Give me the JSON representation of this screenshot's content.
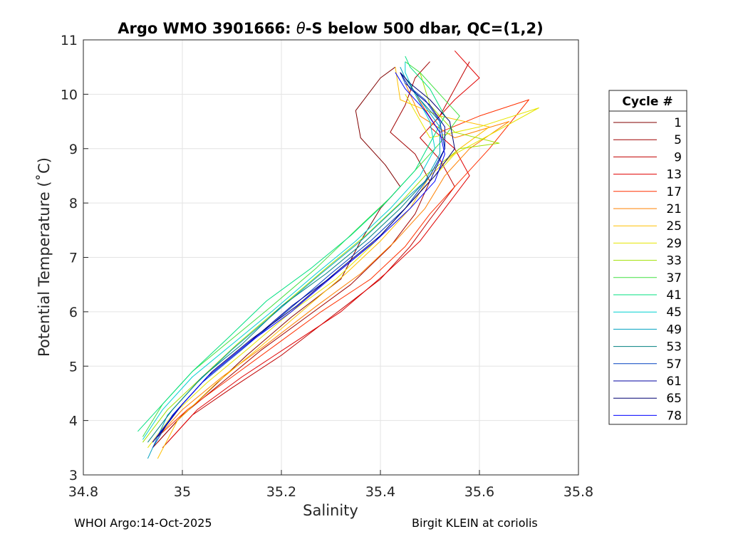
{
  "chart_data": {
    "type": "line",
    "title": "Argo WMO 3901666: θ-S below 500 dbar,  QC=(1,2)",
    "title_parts": {
      "prefix": "Argo WMO 3901666: ",
      "theta": "θ",
      "suffix": "-S below 500 dbar,  QC=(1,2)"
    },
    "xlabel": "Salinity",
    "ylabel": "Potential Temperature (˚C)",
    "xlim": [
      34.8,
      35.8
    ],
    "ylim": [
      3,
      11
    ],
    "xticks": [
      34.8,
      35,
      35.2,
      35.4,
      35.6,
      35.8
    ],
    "xtick_labels": [
      "34.8",
      "35",
      "35.2",
      "35.4",
      "35.6",
      "35.8"
    ],
    "yticks": [
      3,
      4,
      5,
      6,
      7,
      8,
      9,
      10,
      11
    ],
    "ytick_labels": [
      "3",
      "4",
      "5",
      "6",
      "7",
      "8",
      "9",
      "10",
      "11"
    ],
    "grid": true,
    "legend_title": "Cycle #",
    "legend_position": "outside-right",
    "series": [
      {
        "name": "1",
        "color": "#800000",
        "points": [
          [
            34.94,
            3.5
          ],
          [
            34.99,
            4.0
          ],
          [
            35.06,
            4.6
          ],
          [
            35.13,
            5.2
          ],
          [
            35.22,
            5.9
          ],
          [
            35.32,
            6.6
          ],
          [
            35.36,
            7.3
          ],
          [
            35.4,
            7.9
          ],
          [
            35.44,
            8.3
          ],
          [
            35.41,
            8.7
          ],
          [
            35.36,
            9.2
          ],
          [
            35.35,
            9.7
          ],
          [
            35.4,
            10.3
          ],
          [
            35.43,
            10.5
          ]
        ]
      },
      {
        "name": "5",
        "color": "#a00000",
        "points": [
          [
            34.95,
            3.6
          ],
          [
            35.0,
            4.1
          ],
          [
            35.08,
            4.7
          ],
          [
            35.16,
            5.3
          ],
          [
            35.25,
            5.9
          ],
          [
            35.34,
            6.5
          ],
          [
            35.42,
            7.2
          ],
          [
            35.47,
            7.8
          ],
          [
            35.5,
            8.4
          ],
          [
            35.47,
            8.9
          ],
          [
            35.42,
            9.3
          ],
          [
            35.45,
            9.8
          ],
          [
            35.47,
            10.3
          ],
          [
            35.5,
            10.6
          ]
        ]
      },
      {
        "name": "9",
        "color": "#c00000",
        "points": [
          [
            34.96,
            3.5
          ],
          [
            35.02,
            4.1
          ],
          [
            35.1,
            4.6
          ],
          [
            35.2,
            5.2
          ],
          [
            35.3,
            5.9
          ],
          [
            35.4,
            6.6
          ],
          [
            35.46,
            7.2
          ],
          [
            35.5,
            7.7
          ],
          [
            35.55,
            8.3
          ],
          [
            35.52,
            8.8
          ],
          [
            35.48,
            9.2
          ],
          [
            35.52,
            9.6
          ],
          [
            35.55,
            10.1
          ],
          [
            35.58,
            10.6
          ]
        ]
      },
      {
        "name": "13",
        "color": "#e00000",
        "points": [
          [
            34.97,
            3.6
          ],
          [
            35.03,
            4.2
          ],
          [
            35.12,
            4.8
          ],
          [
            35.22,
            5.4
          ],
          [
            35.32,
            6.0
          ],
          [
            35.41,
            6.7
          ],
          [
            35.48,
            7.3
          ],
          [
            35.53,
            7.9
          ],
          [
            35.58,
            8.5
          ],
          [
            35.55,
            9.0
          ],
          [
            35.5,
            9.4
          ],
          [
            35.55,
            9.9
          ],
          [
            35.6,
            10.3
          ],
          [
            35.55,
            10.8
          ]
        ]
      },
      {
        "name": "17",
        "color": "#ff3000",
        "points": [
          [
            34.95,
            3.7
          ],
          [
            35.01,
            4.2
          ],
          [
            35.1,
            4.8
          ],
          [
            35.19,
            5.4
          ],
          [
            35.28,
            6.0
          ],
          [
            35.38,
            6.6
          ],
          [
            35.45,
            7.2
          ],
          [
            35.5,
            7.8
          ],
          [
            35.56,
            8.4
          ],
          [
            35.62,
            9.0
          ],
          [
            35.7,
            9.9
          ],
          [
            35.6,
            9.6
          ],
          [
            35.52,
            9.3
          ],
          [
            35.47,
            10.0
          ]
        ]
      },
      {
        "name": "21",
        "color": "#ff8000",
        "points": [
          [
            34.94,
            3.6
          ],
          [
            35.0,
            4.2
          ],
          [
            35.08,
            4.8
          ],
          [
            35.17,
            5.4
          ],
          [
            35.27,
            6.1
          ],
          [
            35.36,
            6.7
          ],
          [
            35.43,
            7.3
          ],
          [
            35.49,
            7.9
          ],
          [
            35.53,
            8.5
          ],
          [
            35.58,
            9.0
          ],
          [
            35.66,
            9.5
          ],
          [
            35.55,
            9.2
          ],
          [
            35.48,
            9.6
          ],
          [
            35.45,
            10.2
          ]
        ]
      },
      {
        "name": "25",
        "color": "#ffc000",
        "points": [
          [
            34.95,
            3.3
          ],
          [
            34.99,
            4.0
          ],
          [
            35.07,
            4.7
          ],
          [
            35.15,
            5.3
          ],
          [
            35.24,
            6.0
          ],
          [
            35.33,
            6.7
          ],
          [
            35.4,
            7.3
          ],
          [
            35.46,
            7.9
          ],
          [
            35.5,
            8.5
          ],
          [
            35.56,
            9.0
          ],
          [
            35.62,
            9.4
          ],
          [
            35.52,
            9.6
          ],
          [
            35.44,
            9.9
          ],
          [
            35.43,
            10.5
          ]
        ]
      },
      {
        "name": "29",
        "color": "#e6e600",
        "points": [
          [
            34.93,
            3.5
          ],
          [
            34.98,
            4.1
          ],
          [
            35.05,
            4.7
          ],
          [
            35.13,
            5.3
          ],
          [
            35.22,
            6.0
          ],
          [
            35.31,
            6.6
          ],
          [
            35.38,
            7.2
          ],
          [
            35.44,
            7.8
          ],
          [
            35.49,
            8.3
          ],
          [
            35.55,
            8.9
          ],
          [
            35.72,
            9.75
          ],
          [
            35.6,
            9.4
          ],
          [
            35.5,
            9.2
          ],
          [
            35.45,
            10.0
          ]
        ]
      },
      {
        "name": "33",
        "color": "#a0e000",
        "points": [
          [
            34.92,
            3.6
          ],
          [
            34.97,
            4.2
          ],
          [
            35.04,
            4.8
          ],
          [
            35.11,
            5.4
          ],
          [
            35.2,
            6.1
          ],
          [
            35.29,
            6.8
          ],
          [
            35.37,
            7.4
          ],
          [
            35.44,
            8.0
          ],
          [
            35.49,
            8.5
          ],
          [
            35.56,
            9.0
          ],
          [
            35.64,
            9.1
          ],
          [
            35.55,
            9.3
          ],
          [
            35.5,
            9.8
          ],
          [
            35.48,
            10.4
          ]
        ]
      },
      {
        "name": "37",
        "color": "#40e040",
        "points": [
          [
            34.92,
            3.7
          ],
          [
            34.96,
            4.3
          ],
          [
            35.02,
            4.9
          ],
          [
            35.1,
            5.5
          ],
          [
            35.18,
            6.1
          ],
          [
            35.27,
            6.8
          ],
          [
            35.35,
            7.5
          ],
          [
            35.42,
            8.1
          ],
          [
            35.47,
            8.6
          ],
          [
            35.52,
            9.1
          ],
          [
            35.56,
            9.6
          ],
          [
            35.52,
            10.0
          ],
          [
            35.48,
            10.4
          ],
          [
            35.45,
            10.6
          ]
        ]
      },
      {
        "name": "41",
        "color": "#00e080",
        "points": [
          [
            34.91,
            3.8
          ],
          [
            34.96,
            4.3
          ],
          [
            35.02,
            4.9
          ],
          [
            35.09,
            5.5
          ],
          [
            35.17,
            6.2
          ],
          [
            35.26,
            6.8
          ],
          [
            35.34,
            7.4
          ],
          [
            35.41,
            8.0
          ],
          [
            35.47,
            8.6
          ],
          [
            35.5,
            9.1
          ],
          [
            35.53,
            9.6
          ],
          [
            35.5,
            10.1
          ],
          [
            35.46,
            10.5
          ],
          [
            35.45,
            10.7
          ]
        ]
      },
      {
        "name": "45",
        "color": "#00d0d0",
        "points": [
          [
            34.92,
            3.65
          ],
          [
            34.96,
            4.2
          ],
          [
            35.02,
            4.8
          ],
          [
            35.1,
            5.4
          ],
          [
            35.18,
            6.0
          ],
          [
            35.27,
            6.7
          ],
          [
            35.35,
            7.3
          ],
          [
            35.42,
            7.9
          ],
          [
            35.48,
            8.5
          ],
          [
            35.51,
            9.0
          ],
          [
            35.5,
            9.5
          ],
          [
            35.47,
            10.0
          ],
          [
            35.45,
            10.4
          ],
          [
            35.45,
            10.6
          ]
        ]
      },
      {
        "name": "49",
        "color": "#00a0c0",
        "points": [
          [
            34.93,
            3.3
          ],
          [
            34.97,
            4.1
          ],
          [
            35.03,
            4.7
          ],
          [
            35.1,
            5.3
          ],
          [
            35.19,
            6.0
          ],
          [
            35.28,
            6.7
          ],
          [
            35.36,
            7.3
          ],
          [
            35.43,
            7.9
          ],
          [
            35.49,
            8.4
          ],
          [
            35.52,
            8.9
          ],
          [
            35.52,
            9.4
          ],
          [
            35.48,
            9.9
          ],
          [
            35.45,
            10.3
          ],
          [
            35.44,
            10.5
          ]
        ]
      },
      {
        "name": "53",
        "color": "#008080",
        "points": [
          [
            34.93,
            3.6
          ],
          [
            34.98,
            4.2
          ],
          [
            35.04,
            4.8
          ],
          [
            35.12,
            5.4
          ],
          [
            35.2,
            6.1
          ],
          [
            35.29,
            6.7
          ],
          [
            35.37,
            7.3
          ],
          [
            35.44,
            7.9
          ],
          [
            35.5,
            8.5
          ],
          [
            35.53,
            9.0
          ],
          [
            35.52,
            9.5
          ],
          [
            35.48,
            9.9
          ],
          [
            35.45,
            10.3
          ],
          [
            35.44,
            10.4
          ]
        ]
      },
      {
        "name": "57",
        "color": "#0040c0",
        "points": [
          [
            34.94,
            3.5
          ],
          [
            34.98,
            4.1
          ],
          [
            35.04,
            4.7
          ],
          [
            35.12,
            5.3
          ],
          [
            35.21,
            6.0
          ],
          [
            35.3,
            6.7
          ],
          [
            35.38,
            7.3
          ],
          [
            35.45,
            7.9
          ],
          [
            35.5,
            8.5
          ],
          [
            35.53,
            9.0
          ],
          [
            35.52,
            9.5
          ],
          [
            35.49,
            9.9
          ],
          [
            35.45,
            10.2
          ],
          [
            35.44,
            10.4
          ]
        ]
      },
      {
        "name": "61",
        "color": "#0000a0",
        "points": [
          [
            34.94,
            3.6
          ],
          [
            34.99,
            4.2
          ],
          [
            35.05,
            4.8
          ],
          [
            35.13,
            5.4
          ],
          [
            35.22,
            6.1
          ],
          [
            35.31,
            6.7
          ],
          [
            35.39,
            7.3
          ],
          [
            35.45,
            7.9
          ],
          [
            35.5,
            8.4
          ],
          [
            35.53,
            9.0
          ],
          [
            35.53,
            9.4
          ],
          [
            35.5,
            9.8
          ],
          [
            35.46,
            10.1
          ],
          [
            35.44,
            10.4
          ]
        ]
      },
      {
        "name": "65",
        "color": "#000070",
        "points": [
          [
            34.95,
            3.7
          ],
          [
            35.0,
            4.3
          ],
          [
            35.06,
            4.9
          ],
          [
            35.14,
            5.5
          ],
          [
            35.23,
            6.1
          ],
          [
            35.32,
            6.8
          ],
          [
            35.4,
            7.4
          ],
          [
            35.46,
            8.0
          ],
          [
            35.51,
            8.5
          ],
          [
            35.55,
            9.0
          ],
          [
            35.54,
            9.5
          ],
          [
            35.5,
            9.9
          ],
          [
            35.46,
            10.2
          ],
          [
            35.44,
            10.4
          ]
        ]
      },
      {
        "name": "78",
        "color": "#0000ff",
        "points": [
          [
            34.94,
            3.6
          ],
          [
            34.99,
            4.2
          ],
          [
            35.05,
            4.8
          ],
          [
            35.13,
            5.4
          ],
          [
            35.22,
            6.0
          ],
          [
            35.31,
            6.7
          ],
          [
            35.39,
            7.3
          ],
          [
            35.46,
            7.9
          ],
          [
            35.51,
            8.4
          ],
          [
            35.53,
            8.9
          ],
          [
            35.52,
            9.3
          ],
          [
            35.49,
            9.7
          ],
          [
            35.45,
            10.1
          ],
          [
            35.43,
            10.4
          ]
        ]
      }
    ]
  },
  "footer": {
    "left": "WHOI Argo:14-Oct-2025",
    "right": "Birgit KLEIN at coriolis"
  }
}
